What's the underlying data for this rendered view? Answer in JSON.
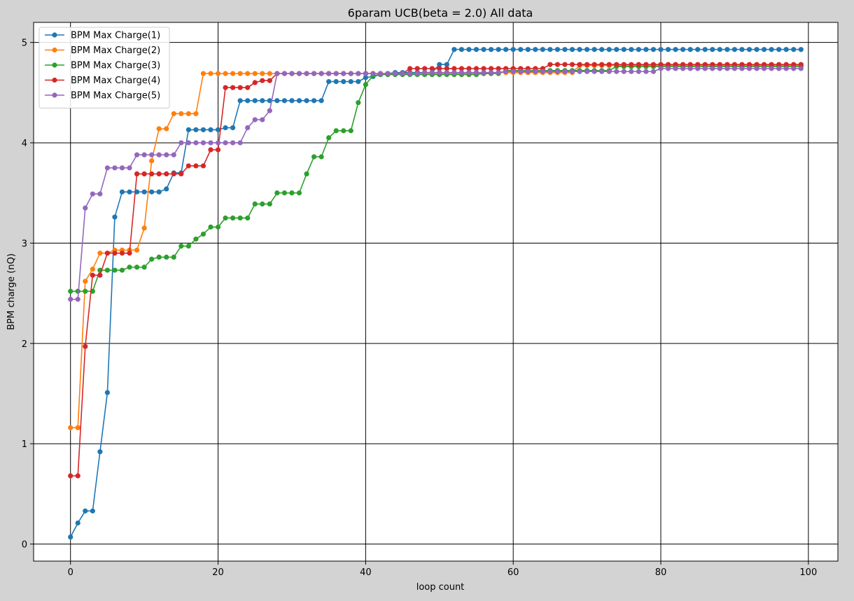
{
  "chart_data": {
    "type": "line",
    "title": "6param UCB(beta = 2.0) All data",
    "xlabel": "loop count",
    "ylabel": "BPM charge (nQ)",
    "xlim": [
      -5,
      104
    ],
    "ylim": [
      -0.17,
      5.2
    ],
    "xticks": [
      0,
      20,
      40,
      60,
      80,
      100
    ],
    "yticks": [
      0,
      1,
      2,
      3,
      4,
      5
    ],
    "grid": true,
    "legend_position": "top-left",
    "marker": "circle",
    "background": "#ffffff",
    "figure_background": "#d3d3d3",
    "series": [
      {
        "name": "BPM Max Charge(1)",
        "color": "#1f77b4",
        "values": [
          0.07,
          0.21,
          0.33,
          0.33,
          0.92,
          1.51,
          3.26,
          3.51,
          3.51,
          3.51,
          3.51,
          3.51,
          3.51,
          3.54,
          3.7,
          3.7,
          4.13,
          4.13,
          4.13,
          4.13,
          4.13,
          4.15,
          4.15,
          4.42,
          4.42,
          4.42,
          4.42,
          4.42,
          4.42,
          4.42,
          4.42,
          4.42,
          4.42,
          4.42,
          4.42,
          4.61,
          4.61,
          4.61,
          4.61,
          4.61,
          4.65,
          4.66,
          4.68,
          4.69,
          4.7,
          4.7,
          4.7,
          4.7,
          4.7,
          4.7,
          4.78,
          4.78,
          4.93,
          4.93,
          4.93,
          4.93,
          4.93,
          4.93,
          4.93,
          4.93,
          4.93,
          4.93,
          4.93,
          4.93,
          4.93,
          4.93,
          4.93,
          4.93,
          4.93,
          4.93,
          4.93,
          4.93,
          4.93,
          4.93,
          4.93,
          4.93,
          4.93,
          4.93,
          4.93,
          4.93,
          4.93,
          4.93,
          4.93,
          4.93,
          4.93,
          4.93,
          4.93,
          4.93,
          4.93,
          4.93,
          4.93,
          4.93,
          4.93,
          4.93,
          4.93,
          4.93,
          4.93,
          4.93,
          4.93,
          4.93
        ]
      },
      {
        "name": "BPM Max Charge(2)",
        "color": "#ff7f0e",
        "values": [
          1.16,
          1.16,
          2.62,
          2.74,
          2.9,
          2.9,
          2.93,
          2.93,
          2.93,
          2.93,
          3.15,
          3.82,
          4.14,
          4.14,
          4.29,
          4.29,
          4.29,
          4.29,
          4.69,
          4.69,
          4.69,
          4.69,
          4.69,
          4.69,
          4.69,
          4.69,
          4.69,
          4.69,
          4.69,
          4.69,
          4.69,
          4.69,
          4.69,
          4.69,
          4.69,
          4.69,
          4.69,
          4.69,
          4.69,
          4.69,
          4.69,
          4.69,
          4.69,
          4.69,
          4.69,
          4.69,
          4.69,
          4.69,
          4.69,
          4.69,
          4.69,
          4.69,
          4.69,
          4.69,
          4.69,
          4.69,
          4.69,
          4.69,
          4.7,
          4.7,
          4.7,
          4.7,
          4.7,
          4.7,
          4.7,
          4.7,
          4.7,
          4.7,
          4.7,
          4.77,
          4.77,
          4.77,
          4.77,
          4.77,
          4.77,
          4.77,
          4.77,
          4.77,
          4.77,
          4.77,
          4.77,
          4.77,
          4.77,
          4.77,
          4.77,
          4.77,
          4.77,
          4.77,
          4.77,
          4.77,
          4.77,
          4.77,
          4.77,
          4.77,
          4.77,
          4.77,
          4.77,
          4.77,
          4.77,
          4.77
        ]
      },
      {
        "name": "BPM Max Charge(3)",
        "color": "#2ca02c",
        "values": [
          2.52,
          2.52,
          2.52,
          2.52,
          2.73,
          2.73,
          2.73,
          2.73,
          2.76,
          2.76,
          2.76,
          2.84,
          2.86,
          2.86,
          2.86,
          2.97,
          2.97,
          3.04,
          3.09,
          3.16,
          3.16,
          3.25,
          3.25,
          3.25,
          3.25,
          3.39,
          3.39,
          3.39,
          3.5,
          3.5,
          3.5,
          3.5,
          3.69,
          3.86,
          3.86,
          4.05,
          4.12,
          4.12,
          4.12,
          4.4,
          4.58,
          4.67,
          4.68,
          4.68,
          4.68,
          4.68,
          4.68,
          4.68,
          4.68,
          4.68,
          4.68,
          4.68,
          4.68,
          4.68,
          4.68,
          4.68,
          4.69,
          4.69,
          4.69,
          4.72,
          4.72,
          4.72,
          4.72,
          4.72,
          4.72,
          4.72,
          4.72,
          4.72,
          4.72,
          4.72,
          4.72,
          4.72,
          4.72,
          4.72,
          4.76,
          4.76,
          4.76,
          4.76,
          4.76,
          4.76,
          4.76,
          4.76,
          4.76,
          4.76,
          4.76,
          4.76,
          4.76,
          4.76,
          4.76,
          4.76,
          4.76,
          4.76,
          4.76,
          4.76,
          4.76,
          4.76,
          4.76,
          4.76,
          4.76,
          4.76
        ]
      },
      {
        "name": "BPM Max Charge(4)",
        "color": "#d62728",
        "values": [
          0.68,
          0.68,
          1.97,
          2.68,
          2.68,
          2.9,
          2.9,
          2.9,
          2.9,
          3.69,
          3.69,
          3.69,
          3.69,
          3.69,
          3.69,
          3.69,
          3.77,
          3.77,
          3.77,
          3.93,
          3.93,
          4.55,
          4.55,
          4.55,
          4.55,
          4.6,
          4.62,
          4.62,
          4.69,
          4.69,
          4.69,
          4.69,
          4.69,
          4.69,
          4.69,
          4.69,
          4.69,
          4.69,
          4.69,
          4.69,
          4.69,
          4.69,
          4.69,
          4.69,
          4.69,
          4.69,
          4.74,
          4.74,
          4.74,
          4.74,
          4.74,
          4.74,
          4.74,
          4.74,
          4.74,
          4.74,
          4.74,
          4.74,
          4.74,
          4.74,
          4.74,
          4.74,
          4.74,
          4.74,
          4.74,
          4.78,
          4.78,
          4.78,
          4.78,
          4.78,
          4.78,
          4.78,
          4.78,
          4.78,
          4.78,
          4.78,
          4.78,
          4.78,
          4.78,
          4.78,
          4.78,
          4.78,
          4.78,
          4.78,
          4.78,
          4.78,
          4.78,
          4.78,
          4.78,
          4.78,
          4.78,
          4.78,
          4.78,
          4.78,
          4.78,
          4.78,
          4.78,
          4.78,
          4.78,
          4.78
        ]
      },
      {
        "name": "BPM Max Charge(5)",
        "color": "#9467bd",
        "values": [
          2.44,
          2.44,
          3.35,
          3.49,
          3.49,
          3.75,
          3.75,
          3.75,
          3.75,
          3.88,
          3.88,
          3.88,
          3.88,
          3.88,
          3.88,
          4.0,
          4.0,
          4.0,
          4.0,
          4.0,
          4.0,
          4.0,
          4.0,
          4.0,
          4.15,
          4.23,
          4.23,
          4.32,
          4.69,
          4.69,
          4.69,
          4.69,
          4.69,
          4.69,
          4.69,
          4.69,
          4.69,
          4.69,
          4.69,
          4.69,
          4.69,
          4.69,
          4.69,
          4.69,
          4.69,
          4.69,
          4.69,
          4.69,
          4.7,
          4.7,
          4.7,
          4.7,
          4.7,
          4.7,
          4.7,
          4.7,
          4.7,
          4.7,
          4.7,
          4.71,
          4.71,
          4.71,
          4.71,
          4.71,
          4.71,
          4.71,
          4.71,
          4.71,
          4.71,
          4.71,
          4.71,
          4.71,
          4.71,
          4.71,
          4.71,
          4.71,
          4.71,
          4.71,
          4.71,
          4.71,
          4.74,
          4.74,
          4.74,
          4.74,
          4.74,
          4.74,
          4.74,
          4.74,
          4.74,
          4.74,
          4.74,
          4.74,
          4.74,
          4.74,
          4.74,
          4.74,
          4.74,
          4.74,
          4.74,
          4.74
        ]
      }
    ]
  }
}
